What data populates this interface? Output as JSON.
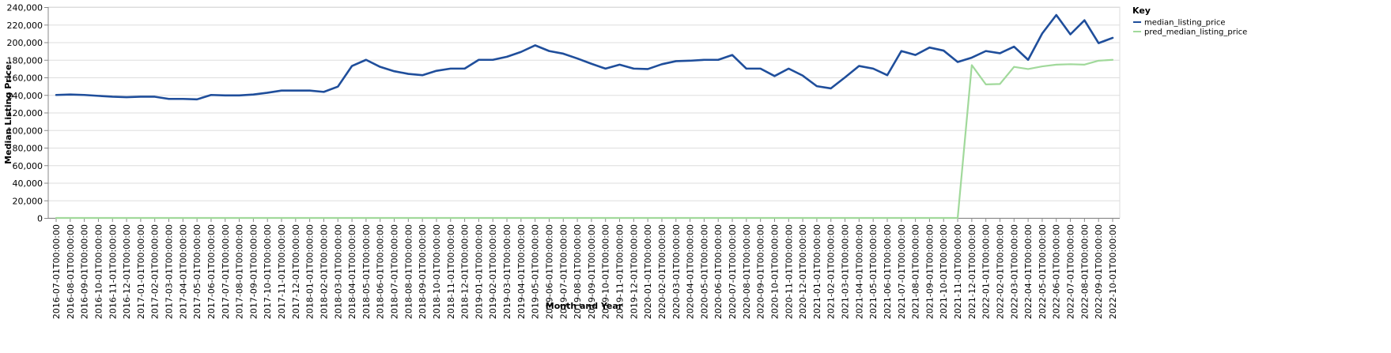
{
  "chart_data": {
    "type": "line",
    "xlabel": "Month and Year",
    "ylabel": "Median Listing Price:",
    "ylim": [
      0,
      240000
    ],
    "yticks": [
      "0",
      "20,000",
      "40,000",
      "60,000",
      "80,000",
      "100,000",
      "120,000",
      "140,000",
      "160,000",
      "180,000",
      "200,000",
      "220,000",
      "240,000"
    ],
    "ytick_values": [
      0,
      20000,
      40000,
      60000,
      80000,
      100000,
      120000,
      140000,
      160000,
      180000,
      200000,
      220000,
      240000
    ],
    "grid": true,
    "legend": {
      "title": "Key",
      "position": "top-right"
    },
    "categories": [
      "2016-07-01T00:00:00",
      "2016-08-01T00:00:00",
      "2016-09-01T00:00:00",
      "2016-10-01T00:00:00",
      "2016-11-01T00:00:00",
      "2016-12-01T00:00:00",
      "2017-01-01T00:00:00",
      "2017-02-01T00:00:00",
      "2017-03-01T00:00:00",
      "2017-04-01T00:00:00",
      "2017-05-01T00:00:00",
      "2017-06-01T00:00:00",
      "2017-07-01T00:00:00",
      "2017-08-01T00:00:00",
      "2017-09-01T00:00:00",
      "2017-10-01T00:00:00",
      "2017-11-01T00:00:00",
      "2017-12-01T00:00:00",
      "2018-01-01T00:00:00",
      "2018-02-01T00:00:00",
      "2018-03-01T00:00:00",
      "2018-04-01T00:00:00",
      "2018-05-01T00:00:00",
      "2018-06-01T00:00:00",
      "2018-07-01T00:00:00",
      "2018-08-01T00:00:00",
      "2018-09-01T00:00:00",
      "2018-10-01T00:00:00",
      "2018-11-01T00:00:00",
      "2018-12-01T00:00:00",
      "2019-01-01T00:00:00",
      "2019-02-01T00:00:00",
      "2019-03-01T00:00:00",
      "2019-04-01T00:00:00",
      "2019-05-01T00:00:00",
      "2019-06-01T00:00:00",
      "2019-07-01T00:00:00",
      "2019-08-01T00:00:00",
      "2019-09-01T00:00:00",
      "2019-10-01T00:00:00",
      "2019-11-01T00:00:00",
      "2019-12-01T00:00:00",
      "2020-01-01T00:00:00",
      "2020-02-01T00:00:00",
      "2020-03-01T00:00:00",
      "2020-04-01T00:00:00",
      "2020-05-01T00:00:00",
      "2020-06-01T00:00:00",
      "2020-07-01T00:00:00",
      "2020-08-01T00:00:00",
      "2020-09-01T00:00:00",
      "2020-10-01T00:00:00",
      "2020-11-01T00:00:00",
      "2020-12-01T00:00:00",
      "2021-01-01T00:00:00",
      "2021-02-01T00:00:00",
      "2021-03-01T00:00:00",
      "2021-04-01T00:00:00",
      "2021-05-01T00:00:00",
      "2021-06-01T00:00:00",
      "2021-07-01T00:00:00",
      "2021-08-01T00:00:00",
      "2021-09-01T00:00:00",
      "2021-10-01T00:00:00",
      "2021-11-01T00:00:00",
      "2021-12-01T00:00:00",
      "2022-01-01T00:00:00",
      "2022-02-01T00:00:00",
      "2022-03-01T00:00:00",
      "2022-04-01T00:00:00",
      "2022-05-01T00:00:00",
      "2022-06-01T00:00:00",
      "2022-07-01T00:00:00",
      "2022-08-01T00:00:00",
      "2022-09-01T00:00:00",
      "2022-10-01T00:00:00"
    ],
    "series": [
      {
        "name": "median_listing_price",
        "color": "#1f4e9b",
        "values": [
          140000,
          140500,
          140000,
          139000,
          138000,
          137500,
          138000,
          138000,
          135500,
          135500,
          135000,
          140000,
          139500,
          139500,
          140500,
          142500,
          145000,
          145000,
          145000,
          143500,
          149500,
          173000,
          180000,
          172000,
          167000,
          164000,
          162500,
          167500,
          170000,
          170000,
          180000,
          180000,
          183500,
          189000,
          196500,
          190000,
          187000,
          181500,
          175500,
          170000,
          174500,
          170000,
          169500,
          175000,
          178500,
          179000,
          180000,
          180000,
          185500,
          170000,
          170000,
          161500,
          170000,
          162000,
          150000,
          147500,
          160000,
          173000,
          170000,
          162500,
          190000,
          185500,
          194000,
          190500,
          177500,
          182500,
          190000,
          187500,
          195000,
          180000,
          210000,
          231000,
          209000,
          225000,
          199000,
          205000
        ]
      },
      {
        "name": "pred_median_listing_price",
        "color": "#a1d99b",
        "values": [
          0,
          0,
          0,
          0,
          0,
          0,
          0,
          0,
          0,
          0,
          0,
          0,
          0,
          0,
          0,
          0,
          0,
          0,
          0,
          0,
          0,
          0,
          0,
          0,
          0,
          0,
          0,
          0,
          0,
          0,
          0,
          0,
          0,
          0,
          0,
          0,
          0,
          0,
          0,
          0,
          0,
          0,
          0,
          0,
          0,
          0,
          0,
          0,
          0,
          0,
          0,
          0,
          0,
          0,
          0,
          0,
          0,
          0,
          0,
          0,
          0,
          0,
          0,
          0,
          0,
          174000,
          152000,
          152500,
          172000,
          169500,
          172500,
          174500,
          175000,
          174500,
          179000,
          180000
        ]
      }
    ]
  }
}
